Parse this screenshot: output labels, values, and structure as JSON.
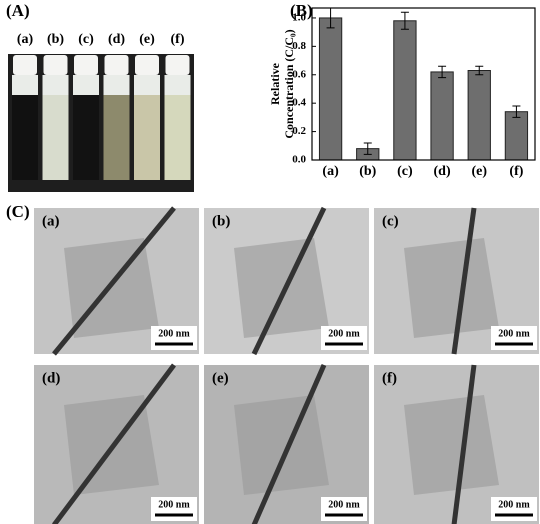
{
  "panel_a": {
    "label": "(A)",
    "vial_labels": [
      "(a)",
      "(b)",
      "(c)",
      "(d)",
      "(e)",
      "(f)"
    ]
  },
  "chart_data": {
    "type": "bar",
    "panel_label": "(B)",
    "ylabel": [
      "Relative",
      "Concentration (C/C₀)"
    ],
    "categories": [
      "(a)",
      "(b)",
      "(c)",
      "(d)",
      "(e)",
      "(f)"
    ],
    "values": [
      1.0,
      0.08,
      0.98,
      0.62,
      0.63,
      0.34
    ],
    "errors": [
      0.07,
      0.04,
      0.06,
      0.04,
      0.03,
      0.04
    ],
    "color": "#6e6e6e",
    "ylim": [
      0,
      1.07
    ],
    "yticks": [
      {
        "value": 0,
        "label": "0.0"
      },
      {
        "value": 0.2,
        "label": "0.2"
      },
      {
        "value": 0.4,
        "label": "0.4"
      },
      {
        "value": 0.6,
        "label": "0.6"
      },
      {
        "value": 0.8,
        "label": "0.8"
      },
      {
        "value": 1.0,
        "label": "1.0"
      }
    ]
  },
  "panel_c": {
    "label": "(C)",
    "images": [
      {
        "label": "(a)",
        "scale_bar": "200 nm"
      },
      {
        "label": "(b)",
        "scale_bar": "200 nm"
      },
      {
        "label": "(c)",
        "scale_bar": "200 nm"
      },
      {
        "label": "(d)",
        "scale_bar": "200 nm"
      },
      {
        "label": "(e)",
        "scale_bar": "200 nm"
      },
      {
        "label": "(f)",
        "scale_bar": "200 nm"
      }
    ]
  }
}
